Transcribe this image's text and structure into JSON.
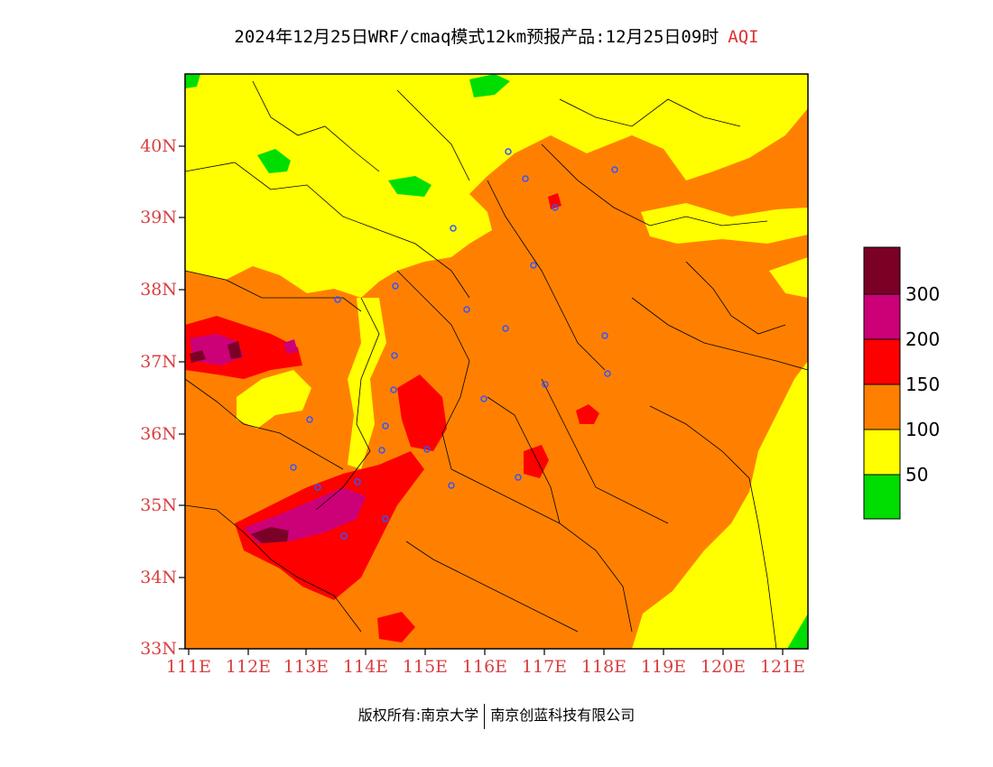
{
  "title": {
    "text": "2024年12月25日WRF/cmaq模式12km预报产品:12月25日09时",
    "index": "AQI"
  },
  "map": {
    "lat_labels": [
      "40N",
      "39N",
      "38N",
      "37N",
      "36N",
      "35N",
      "34N",
      "33N"
    ],
    "lon_labels": [
      "111E",
      "112E",
      "113E",
      "114E",
      "115E",
      "116E",
      "117E",
      "118E",
      "119E",
      "120E",
      "121E"
    ],
    "lat_range": [
      33,
      41
    ],
    "lon_range": [
      111,
      121.4
    ]
  },
  "legend": {
    "labels": [
      "300",
      "200",
      "150",
      "100",
      "50"
    ],
    "colors": [
      "#000000",
      "#00dd00",
      "#ffff00",
      "#ff8000",
      "#ff0000",
      "#cc0077",
      "#7a0026"
    ]
  },
  "footer": {
    "owner": "版权所有:南京大学",
    "company": "南京创蓝科技有限公司"
  }
}
